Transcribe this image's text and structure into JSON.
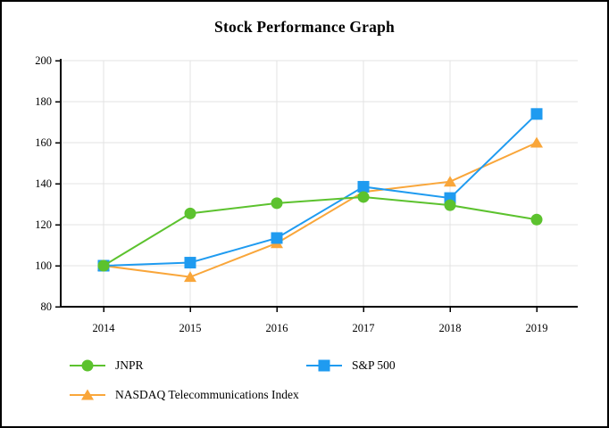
{
  "window": {
    "title": "Stock Performance Graph"
  },
  "chart_data": {
    "type": "line",
    "title": "Stock Performance Graph",
    "categories": [
      "2014",
      "2015",
      "2016",
      "2017",
      "2018",
      "2019"
    ],
    "series": [
      {
        "name": "JNPR",
        "marker": "circle",
        "color": "#5CC22E",
        "values": [
          100,
          125.5,
          130.5,
          133.5,
          129.5,
          122.5
        ]
      },
      {
        "name": "S&P 500",
        "marker": "square",
        "color": "#1F9BF0",
        "values": [
          100,
          101.5,
          113.5,
          138.5,
          133,
          174
        ]
      },
      {
        "name": "NASDAQ Telecommunications Index",
        "marker": "triangle",
        "color": "#F9A63A",
        "values": [
          100,
          94.5,
          111,
          136,
          141,
          160
        ]
      }
    ],
    "xlabel": "",
    "ylabel": "",
    "ylim": [
      80,
      200
    ],
    "y_ticks": [
      80,
      100,
      120,
      140,
      160,
      180,
      200
    ],
    "grid": true,
    "grid_color": "#E3E3E3",
    "axis_color": "#000000",
    "tick_label_color": "#000000",
    "legend_position": "bottom-left"
  }
}
